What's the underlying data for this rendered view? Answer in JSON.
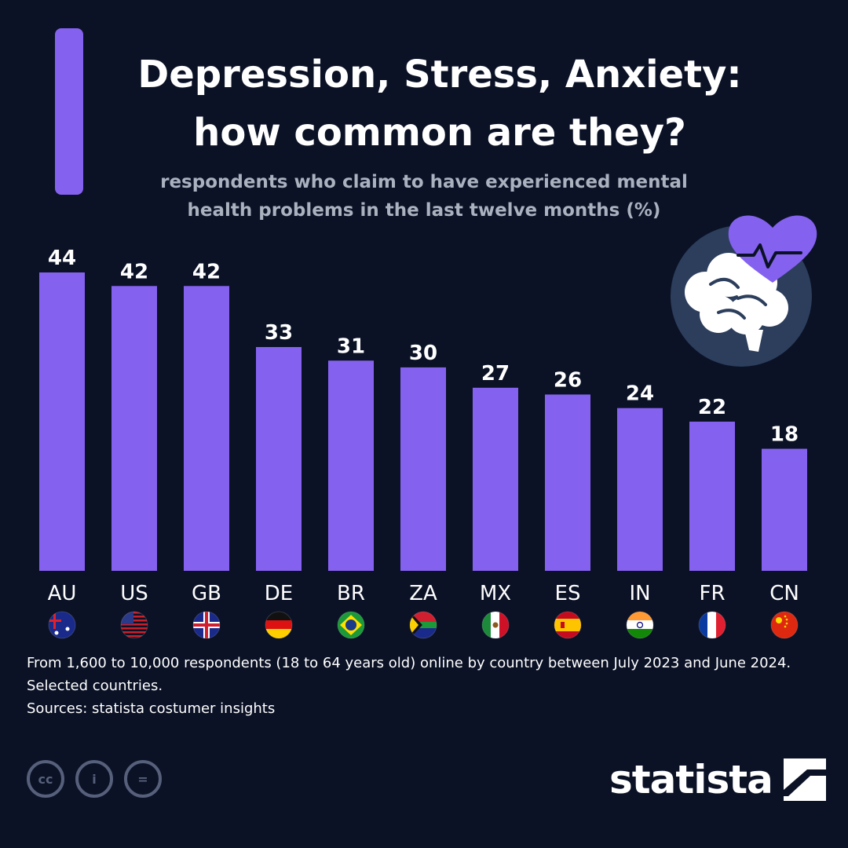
{
  "title_lines": [
    "Depression, Stress, Anxiety:",
    "how common are they?"
  ],
  "subtitle_lines": [
    "respondents who claim to have experienced mental",
    "health problems in the last twelve months (%)"
  ],
  "chart_data": {
    "type": "bar",
    "title": "Depression, Stress, Anxiety: how common are they?",
    "ylabel": "respondents who claim to have experienced mental health problems in the last twelve months (%)",
    "xlabel": "",
    "categories": [
      "AU",
      "US",
      "GB",
      "DE",
      "BR",
      "ZA",
      "MX",
      "ES",
      "IN",
      "FR",
      "CN"
    ],
    "values": [
      44,
      42,
      42,
      33,
      31,
      30,
      27,
      26,
      24,
      22,
      18
    ],
    "ylim": [
      0,
      44
    ],
    "grid": false,
    "bar_color": "#8561f0"
  },
  "footnote_lines": [
    "From 1,600 to 10,000 respondents (18 to 64 years old) online by country between July 2023 and June 2024.",
    "Selected countries.",
    "Sources: statista costumer insights"
  ],
  "license_labels": [
    "cc",
    "i",
    "="
  ],
  "brand": "statista",
  "colors": {
    "background": "#0b1226",
    "accent": "#8561f0",
    "subtitle": "#aab2bf",
    "icon_circle": "#2c3e5c"
  }
}
